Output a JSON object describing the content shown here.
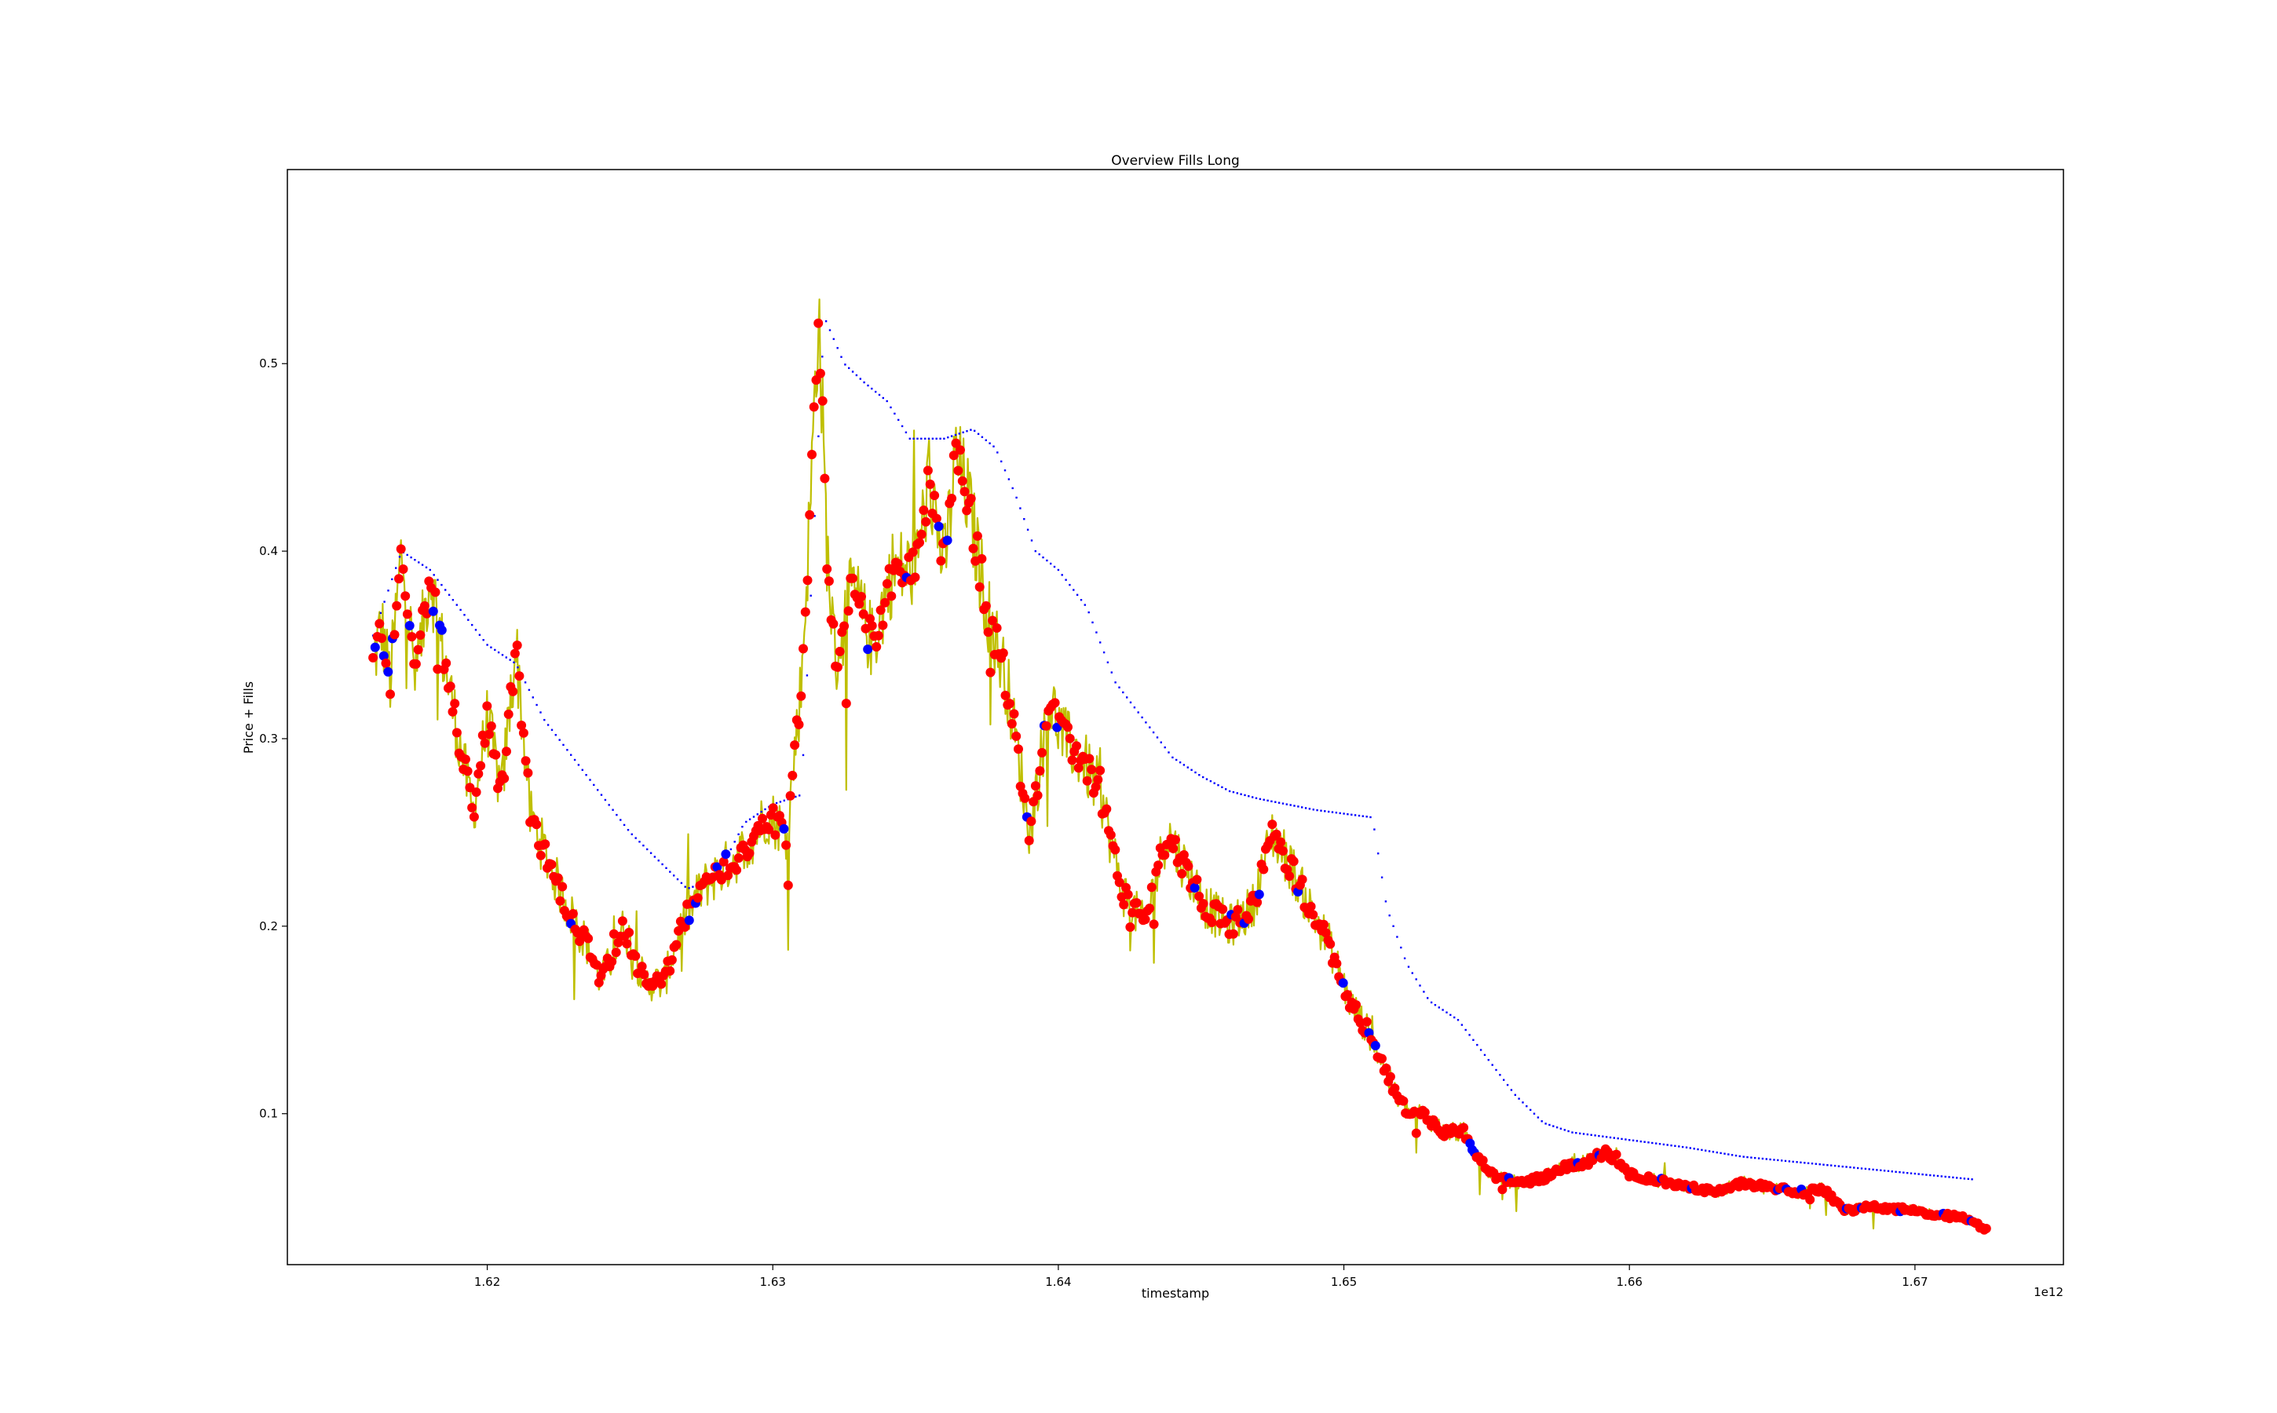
{
  "chart_data": {
    "type": "line",
    "title": "Overview Fills Long",
    "xlabel": "timestamp",
    "ylabel": "Price + Fills",
    "x_offset_label": "1e12",
    "xlim": [
      1.613,
      1.6752
    ],
    "ylim": [
      0.0195,
      0.6035
    ],
    "grid": false,
    "x_ticks": [
      1.62,
      1.63,
      1.64,
      1.65,
      1.66,
      1.67
    ],
    "x_tick_labels": [
      "1.62",
      "1.63",
      "1.64",
      "1.65",
      "1.66",
      "1.67"
    ],
    "y_ticks": [
      0.1,
      0.2,
      0.3,
      0.4,
      0.5
    ],
    "y_tick_labels": [
      "0.1",
      "0.2",
      "0.3",
      "0.4",
      "0.5"
    ],
    "colors": {
      "price": "#bfbf00",
      "sell_fill": "#ff0000",
      "buy_fill": "#0000ff",
      "position_price": "#0000ff",
      "close_marker": "#ff0000"
    },
    "series": [
      {
        "role": "price",
        "x": [
          1.616,
          1.6163,
          1.6166,
          1.617,
          1.6175,
          1.618,
          1.6184,
          1.619,
          1.6195,
          1.62,
          1.6205,
          1.621,
          1.6215,
          1.622,
          1.6228,
          1.6235,
          1.624,
          1.6248,
          1.6255,
          1.6262,
          1.6268,
          1.6275,
          1.6282,
          1.629,
          1.6298,
          1.6305,
          1.631,
          1.6313,
          1.6316,
          1.6319,
          1.6322,
          1.6328,
          1.6335,
          1.6342,
          1.635,
          1.6355,
          1.636,
          1.6364,
          1.6368,
          1.6375,
          1.6382,
          1.639,
          1.6397,
          1.6402,
          1.6408,
          1.6415,
          1.6422,
          1.643,
          1.6438,
          1.6445,
          1.6452,
          1.646,
          1.6468,
          1.6475,
          1.6482,
          1.6488,
          1.6495,
          1.6502,
          1.651,
          1.6518,
          1.6523,
          1.6528,
          1.6535,
          1.6542,
          1.655,
          1.6555,
          1.6562,
          1.657,
          1.6578,
          1.6585,
          1.6592,
          1.66,
          1.6608,
          1.6615,
          1.6622,
          1.663,
          1.664,
          1.665,
          1.666,
          1.6668,
          1.6675,
          1.6682,
          1.669,
          1.67,
          1.671,
          1.6718,
          1.6725
        ],
        "y": [
          0.34,
          0.36,
          0.33,
          0.4,
          0.33,
          0.39,
          0.35,
          0.3,
          0.26,
          0.31,
          0.27,
          0.35,
          0.26,
          0.24,
          0.21,
          0.19,
          0.17,
          0.2,
          0.17,
          0.17,
          0.2,
          0.22,
          0.23,
          0.24,
          0.26,
          0.25,
          0.33,
          0.42,
          0.53,
          0.4,
          0.34,
          0.38,
          0.35,
          0.39,
          0.39,
          0.44,
          0.39,
          0.45,
          0.43,
          0.37,
          0.33,
          0.25,
          0.32,
          0.3,
          0.29,
          0.27,
          0.22,
          0.2,
          0.25,
          0.23,
          0.21,
          0.2,
          0.21,
          0.25,
          0.23,
          0.21,
          0.19,
          0.16,
          0.14,
          0.11,
          0.1,
          0.1,
          0.09,
          0.09,
          0.07,
          0.065,
          0.063,
          0.066,
          0.072,
          0.074,
          0.08,
          0.068,
          0.065,
          0.062,
          0.061,
          0.058,
          0.063,
          0.06,
          0.058,
          0.06,
          0.048,
          0.05,
          0.05,
          0.048,
          0.046,
          0.044,
          0.038
        ]
      },
      {
        "role": "position_price",
        "x": [
          1.616,
          1.617,
          1.618,
          1.619,
          1.62,
          1.621,
          1.622,
          1.623,
          1.624,
          1.625,
          1.626,
          1.627,
          1.628,
          1.629,
          1.63,
          1.631,
          1.6318,
          1.6325,
          1.6332,
          1.634,
          1.6348,
          1.636,
          1.637,
          1.6378,
          1.6385,
          1.6392,
          1.64,
          1.641,
          1.642,
          1.643,
          1.644,
          1.645,
          1.646,
          1.647,
          1.648,
          1.649,
          1.65,
          1.651,
          1.6515,
          1.6522,
          1.653,
          1.654,
          1.655,
          1.656,
          1.657,
          1.658,
          1.659,
          1.66,
          1.662,
          1.664,
          1.666,
          1.668,
          1.67,
          1.672
        ],
        "y": [
          0.355,
          0.4,
          0.39,
          0.37,
          0.35,
          0.34,
          0.31,
          0.29,
          0.27,
          0.25,
          0.235,
          0.22,
          0.225,
          0.255,
          0.265,
          0.27,
          0.525,
          0.5,
          0.49,
          0.48,
          0.46,
          0.46,
          0.465,
          0.455,
          0.43,
          0.4,
          0.39,
          0.37,
          0.33,
          0.31,
          0.29,
          0.28,
          0.272,
          0.268,
          0.265,
          0.262,
          0.26,
          0.258,
          0.21,
          0.18,
          0.16,
          0.15,
          0.13,
          0.11,
          0.095,
          0.09,
          0.088,
          0.086,
          0.082,
          0.077,
          0.074,
          0.071,
          0.068,
          0.065
        ]
      }
    ]
  }
}
